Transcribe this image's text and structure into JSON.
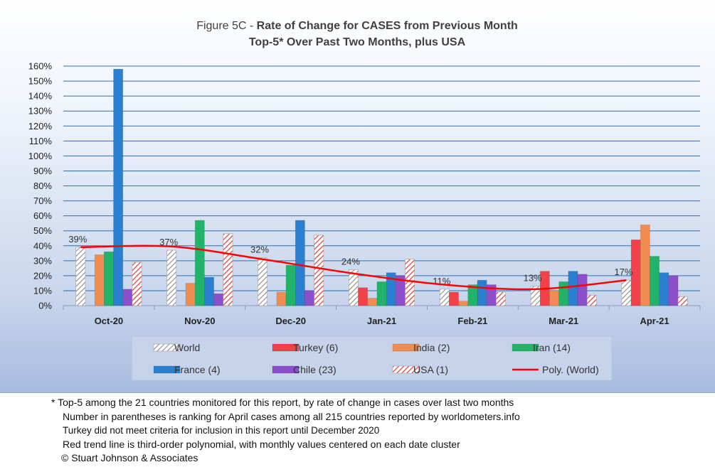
{
  "chart_data": {
    "type": "bar",
    "title_prefix": "Figure 5C - ",
    "title_bold": "Rate of Change for CASES from Previous Month",
    "subtitle": "Top-5* Over Past Two Months, plus USA",
    "categories": [
      "Oct-20",
      "Nov-20",
      "Dec-20",
      "Jan-21",
      "Feb-21",
      "Mar-21",
      "Apr-21"
    ],
    "y_ticks": [
      "0%",
      "10%",
      "20%",
      "30%",
      "40%",
      "50%",
      "60%",
      "70%",
      "80%",
      "90%",
      "100%",
      "110%",
      "120%",
      "130%",
      "140%",
      "150%",
      "160%"
    ],
    "ylim": [
      0,
      160
    ],
    "grid": true,
    "legend_position": "bottom",
    "series": [
      {
        "name": "World",
        "color": "#b0b0b0",
        "pattern": "hatch-gray",
        "values": [
          39,
          37,
          32,
          24,
          11,
          13,
          17
        ]
      },
      {
        "name": "Turkey (6)",
        "color": "#f2414b",
        "values": [
          null,
          null,
          null,
          12,
          9,
          23,
          44
        ]
      },
      {
        "name": "India (2)",
        "color": "#ef8c52",
        "values": [
          34,
          15,
          9,
          5,
          3,
          10,
          54
        ]
      },
      {
        "name": "Iran (14)",
        "color": "#22b26a",
        "values": [
          36,
          57,
          27,
          16,
          14,
          16,
          33
        ]
      },
      {
        "name": "France (4)",
        "color": "#2a7fd0",
        "values": [
          158,
          19,
          57,
          22,
          17,
          23,
          22
        ]
      },
      {
        "name": "Chile (23)",
        "color": "#8a4fc9",
        "values": [
          11,
          8,
          10,
          20,
          14,
          21,
          20
        ]
      },
      {
        "name": "USA (1)",
        "color": "#e03a3a",
        "pattern": "hatch-red",
        "values": [
          29,
          48,
          47,
          31,
          9,
          7,
          6
        ]
      }
    ],
    "data_labels": [
      "39%",
      "37%",
      "32%",
      "24%",
      "11%",
      "13%",
      "17%"
    ],
    "trendline": {
      "name": "Poly. (World)",
      "color": "#ff0000",
      "values": [
        39,
        39.5,
        31,
        21.5,
        14,
        11,
        17
      ]
    }
  },
  "footnotes": [
    "* Top-5 among the 21 countries monitored for this report, by rate of change in cases over last two months",
    "Number in parentheses is ranking for April cases among all 215 countries reported by worldometers.info",
    "Turkey did not meet criteria for inclusion in this report until December 2020",
    "Red trend line is third-order polynomial, with monthly values centered on each date cluster",
    "© Stuart Johnson & Associates"
  ]
}
